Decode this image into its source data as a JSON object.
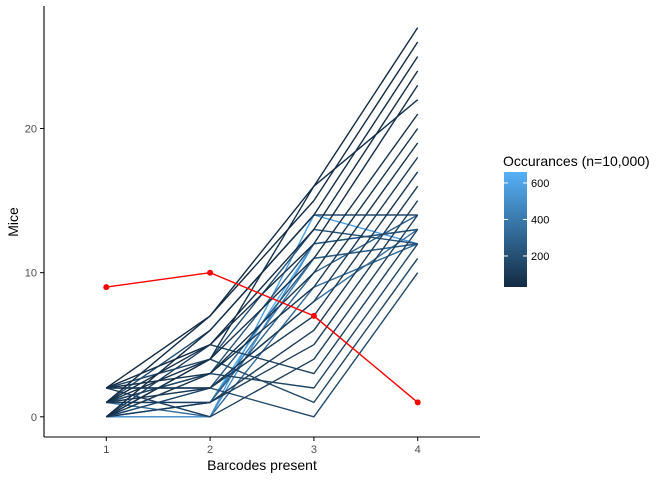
{
  "chart_data": {
    "type": "line",
    "xlabel": "Barcodes present",
    "ylabel": "Mice",
    "x_ticks": [
      "1",
      "2",
      "3",
      "4"
    ],
    "y_ticks": [
      "0",
      "10",
      "20"
    ],
    "xlim": [
      0.4,
      4.6
    ],
    "ylim": [
      -1.4,
      28.5
    ],
    "grid": false,
    "legend": {
      "title": "Occurances (n=10,000)",
      "placement": "right",
      "labels": [
        "600",
        "400",
        "200"
      ],
      "label_values": [
        600,
        400,
        200
      ],
      "range": [
        30,
        660
      ],
      "low_color": "#132B43",
      "high_color": "#56B1F7"
    },
    "highlight_series": {
      "color": "#ff0000",
      "x": [
        1,
        2,
        3,
        4
      ],
      "y": [
        9,
        10,
        7,
        1
      ]
    },
    "simulated_series": [
      {
        "x": [
          1,
          2,
          3,
          4
        ],
        "y": [
          1,
          7,
          16,
          27
        ],
        "count": 30
      },
      {
        "x": [
          1,
          2,
          3,
          4
        ],
        "y": [
          2,
          7,
          15,
          26
        ],
        "count": 35
      },
      {
        "x": [
          1,
          2,
          3,
          4
        ],
        "y": [
          0,
          6,
          14,
          25
        ],
        "count": 40
      },
      {
        "x": [
          1,
          2,
          3,
          4
        ],
        "y": [
          2,
          5,
          13,
          24
        ],
        "count": 45
      },
      {
        "x": [
          1,
          2,
          3,
          4
        ],
        "y": [
          1,
          5,
          12,
          23
        ],
        "count": 50
      },
      {
        "x": [
          1,
          2,
          3,
          4
        ],
        "y": [
          0,
          4,
          16,
          22
        ],
        "count": 55
      },
      {
        "x": [
          1,
          2,
          3,
          4
        ],
        "y": [
          1,
          4,
          11,
          21
        ],
        "count": 60
      },
      {
        "x": [
          1,
          2,
          3,
          4
        ],
        "y": [
          2,
          3,
          10,
          20
        ],
        "count": 70
      },
      {
        "x": [
          1,
          2,
          3,
          4
        ],
        "y": [
          0,
          3,
          9,
          19
        ],
        "count": 80
      },
      {
        "x": [
          1,
          2,
          3,
          4
        ],
        "y": [
          1,
          2,
          8,
          18
        ],
        "count": 90
      },
      {
        "x": [
          1,
          2,
          3,
          4
        ],
        "y": [
          2,
          2,
          7,
          17
        ],
        "count": 100
      },
      {
        "x": [
          1,
          2,
          3,
          4
        ],
        "y": [
          0,
          1,
          6,
          16
        ],
        "count": 110
      },
      {
        "x": [
          1,
          2,
          3,
          4
        ],
        "y": [
          1,
          1,
          5,
          15
        ],
        "count": 120
      },
      {
        "x": [
          1,
          2,
          3,
          4
        ],
        "y": [
          2,
          0,
          4,
          14
        ],
        "count": 130
      },
      {
        "x": [
          1,
          2,
          3,
          4
        ],
        "y": [
          0,
          5,
          3,
          13
        ],
        "count": 140
      },
      {
        "x": [
          1,
          2,
          3,
          4
        ],
        "y": [
          1,
          3,
          2,
          12
        ],
        "count": 150
      },
      {
        "x": [
          1,
          2,
          3,
          4
        ],
        "y": [
          2,
          4,
          1,
          11
        ],
        "count": 160
      },
      {
        "x": [
          1,
          2,
          3,
          4
        ],
        "y": [
          0,
          2,
          0,
          10
        ],
        "count": 170
      },
      {
        "x": [
          1,
          2,
          3,
          4
        ],
        "y": [
          1,
          6,
          14,
          14
        ],
        "count": 180
      },
      {
        "x": [
          1,
          2,
          3,
          4
        ],
        "y": [
          0,
          4,
          13,
          12
        ],
        "count": 200
      },
      {
        "x": [
          1,
          2,
          3,
          4
        ],
        "y": [
          1,
          3,
          12,
          13
        ],
        "count": 220
      },
      {
        "x": [
          1,
          2,
          3,
          4
        ],
        "y": [
          2,
          2,
          11,
          12
        ],
        "count": 250
      },
      {
        "x": [
          1,
          2,
          3,
          4
        ],
        "y": [
          0,
          1,
          10,
          14
        ],
        "count": 280
      },
      {
        "x": [
          1,
          2,
          3,
          4
        ],
        "y": [
          1,
          0,
          9,
          12
        ],
        "count": 320
      },
      {
        "x": [
          1,
          2,
          3,
          4
        ],
        "y": [
          0,
          2,
          8,
          13
        ],
        "count": 360
      },
      {
        "x": [
          1,
          2,
          3,
          4
        ],
        "y": [
          1,
          1,
          11,
          12
        ],
        "count": 420
      },
      {
        "x": [
          1,
          2,
          3,
          4
        ],
        "y": [
          0,
          0,
          12,
          13
        ],
        "count": 500
      },
      {
        "x": [
          1,
          2,
          3,
          4
        ],
        "y": [
          0,
          0,
          14,
          12
        ],
        "count": 580
      },
      {
        "x": [
          1,
          2,
          3,
          4
        ],
        "y": [
          0,
          1,
          12,
          13
        ],
        "count": 640
      }
    ]
  }
}
